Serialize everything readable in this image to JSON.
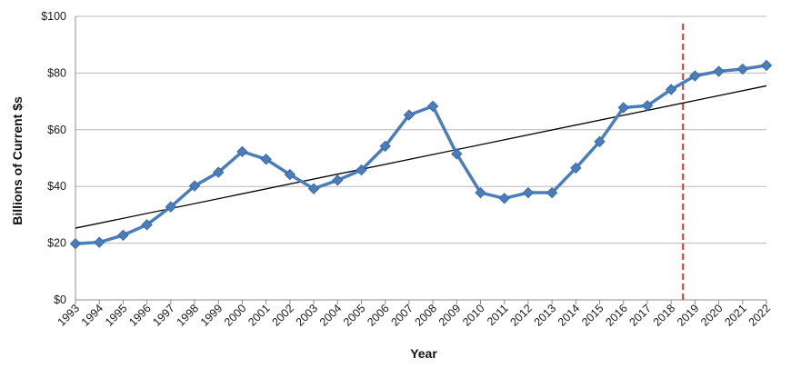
{
  "chart_data": {
    "type": "line",
    "title": "",
    "xlabel": "Year",
    "ylabel": "Billions of Current $s",
    "categories": [
      "1993",
      "1994",
      "1995",
      "1996",
      "1997",
      "1998",
      "1999",
      "2000",
      "2001",
      "2002",
      "2003",
      "2004",
      "2005",
      "2006",
      "2007",
      "2008",
      "2009",
      "2010",
      "2011",
      "2012",
      "2013",
      "2014",
      "2015",
      "2016",
      "2017",
      "2018",
      "2019",
      "2020",
      "2021",
      "2022"
    ],
    "y_ticks": [
      "$0",
      "$20",
      "$40",
      "$60",
      "$80",
      "$100"
    ],
    "ylim": [
      0,
      100
    ],
    "grid": true,
    "legend": "none",
    "series": [
      {
        "values": [
          19.8,
          20.3,
          22.8,
          26.5,
          32.8,
          40.2,
          45.0,
          52.3,
          49.6,
          44.2,
          39.2,
          42.2,
          45.8,
          54.2,
          65.2,
          68.3,
          51.5,
          37.8,
          35.8,
          37.8,
          37.8,
          46.5,
          55.8,
          67.8,
          68.5,
          74.2,
          79.0,
          80.6,
          81.4,
          82.7
        ],
        "color": "#4a7ebb"
      }
    ],
    "trendline": {
      "start": 25.3,
      "end": 75.5,
      "color": "#000000"
    },
    "forecast_marker": {
      "after": "2018",
      "color": "#c0392b"
    }
  }
}
